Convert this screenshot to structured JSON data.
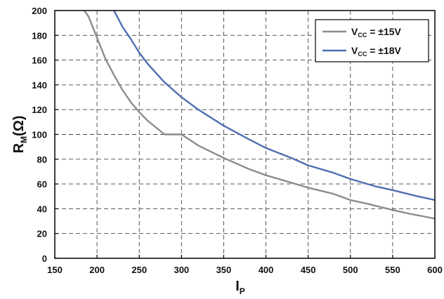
{
  "chart_data": {
    "type": "line",
    "title": "",
    "xlabel": {
      "main": "I",
      "sub": "P"
    },
    "ylabel": {
      "main": "R",
      "sub": "M",
      "suffix": "(Ω)"
    },
    "xlim": [
      150,
      600
    ],
    "ylim": [
      0,
      200
    ],
    "x_ticks": [
      150,
      200,
      250,
      300,
      350,
      400,
      450,
      500,
      550,
      600
    ],
    "y_ticks": [
      0,
      20,
      40,
      60,
      80,
      100,
      120,
      140,
      160,
      180,
      200
    ],
    "grid": "dashed",
    "legend_position": "top-right",
    "series": [
      {
        "name": "Vcc = ±15V",
        "legend": {
          "main": "V",
          "sub": "CC",
          "rest": " = ±15V"
        },
        "color": "#8c8c8c",
        "x": [
          185,
          190,
          200,
          210,
          220,
          230,
          240,
          250,
          260,
          280,
          300,
          320,
          350,
          380,
          400,
          430,
          450,
          480,
          500,
          520,
          550,
          570,
          600
        ],
        "y": [
          200,
          195,
          178,
          161,
          148,
          136,
          126,
          118,
          111,
          100,
          100,
          91,
          81,
          72,
          67,
          61,
          57,
          52,
          47,
          44,
          39,
          36,
          32
        ]
      },
      {
        "name": "Vcc = ±18V",
        "legend": {
          "main": "V",
          "sub": "CC",
          "rest": " = ±18V"
        },
        "color": "#4f6fb0",
        "x": [
          220,
          230,
          240,
          250,
          260,
          280,
          300,
          320,
          350,
          380,
          400,
          430,
          450,
          480,
          500,
          530,
          550,
          580,
          600
        ],
        "y": [
          200,
          187,
          177,
          166,
          157,
          142,
          130,
          120,
          107,
          96,
          89,
          81,
          75,
          69,
          64,
          58,
          55,
          50,
          47
        ]
      }
    ]
  }
}
